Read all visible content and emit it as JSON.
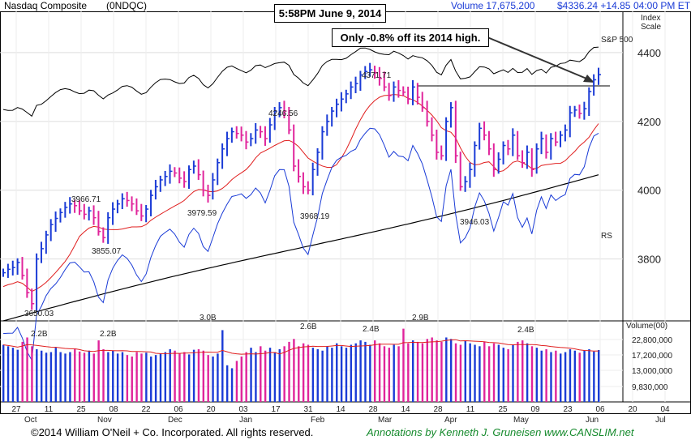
{
  "header": {
    "name": "Nasdaq Composite",
    "symbol": "(0NDQC)",
    "volume": "Volume 17,675,200",
    "price": "$4336.24 +14.85",
    "time": "04:00 PM ET",
    "stamp": "5:58PM  June 9, 2014",
    "note": "Only -0.8% off its 2014 high.",
    "index_scale_1": "Index",
    "index_scale_2": "Scale"
  },
  "footer": {
    "copyright": "©2014 William O'Neil + Co. Incorporated. All rights reserved.",
    "annotations": "Annotations by Kenneth J. Gruneisen  www.CANSLIM.net"
  },
  "colors": {
    "up": "#1a3bd6",
    "down": "#e0249b",
    "ma50": "#e01e1e",
    "ma200": "#000000",
    "rs": "#1a3bd6",
    "sp": "#000000"
  },
  "chart_data": {
    "type": "bar",
    "price_axis": {
      "ticks": [
        4400,
        4200,
        4000,
        3800
      ],
      "range": [
        3620,
        4520
      ],
      "side": "right"
    },
    "volume_axis": {
      "title": "Volume(00)",
      "ticks": [
        "22,800,000",
        "17,200,000",
        "13,000,000",
        "9,830,000"
      ]
    },
    "x_labels": [
      "27",
      "11",
      "25",
      "08",
      "22",
      "06",
      "20",
      "03",
      "17",
      "31",
      "14",
      "28",
      "14",
      "28",
      "11",
      "25",
      "09",
      "23",
      "06",
      "20",
      "04"
    ],
    "month_labels": [
      "Oct",
      "Nov",
      "Dec",
      "Jan",
      "Feb",
      "Mar",
      "Apr",
      "May",
      "Jun",
      "Jul"
    ],
    "price_annotations": [
      {
        "label": "3650.03",
        "value": 3650.03
      },
      {
        "label": "3966.71",
        "value": 3966.71
      },
      {
        "label": "3855.07",
        "value": 3855.07
      },
      {
        "label": "3979.59",
        "value": 3979.59
      },
      {
        "label": "4246.56",
        "value": 4246.56
      },
      {
        "label": "3968.19",
        "value": 3968.19
      },
      {
        "label": "4371.71",
        "value": 4371.71
      },
      {
        "label": "3946.03",
        "value": 3946.03
      }
    ],
    "volume_annotations": [
      "2.2B",
      "2.2B",
      "3.0B",
      "2.6B",
      "2.4B",
      "2.9B",
      "2.4B"
    ],
    "series_labels": {
      "sp": "S&P 500",
      "rs": "RS"
    },
    "high_line": 4360,
    "closes": [
      3760,
      3770,
      3775,
      3790,
      3752,
      3702,
      3670,
      3800,
      3830,
      3870,
      3900,
      3918,
      3935,
      3950,
      3960,
      3955,
      3940,
      3930,
      3940,
      3920,
      3880,
      3862,
      3920,
      3945,
      3960,
      3975,
      3970,
      3960,
      3940,
      3925,
      3945,
      3985,
      4010,
      4030,
      4040,
      4055,
      4050,
      4035,
      4025,
      4060,
      4070,
      4045,
      4000,
      3985,
      4030,
      4080,
      4120,
      4150,
      4170,
      4165,
      4160,
      4140,
      4150,
      4175,
      4170,
      4150,
      4190,
      4230,
      4240,
      4230,
      4175,
      4070,
      4040,
      4010,
      4000,
      4060,
      4110,
      4170,
      4200,
      4230,
      4250,
      4265,
      4280,
      4300,
      4310,
      4335,
      4345,
      4350,
      4342,
      4325,
      4300,
      4275,
      4300,
      4290,
      4285,
      4265,
      4300,
      4270,
      4240,
      4200,
      4160,
      4110,
      4100,
      4200,
      4240,
      4100,
      4010,
      4025,
      4060,
      4130,
      4180,
      4160,
      4120,
      4060,
      4090,
      4130,
      4120,
      4160,
      4100,
      4080,
      4110,
      4060,
      4120,
      4150,
      4110,
      4150,
      4140,
      4160,
      4175,
      4225,
      4233,
      4223,
      4237,
      4287,
      4321,
      4336
    ],
    "volumes": [
      19.5,
      19.0,
      18.5,
      17.8,
      20.5,
      22.0,
      19.0,
      18.0,
      17.5,
      16.8,
      17.0,
      18.5,
      17.0,
      16.5,
      17.0,
      18.0,
      17.2,
      16.8,
      17.5,
      16.5,
      21.0,
      18.0,
      17.0,
      17.5,
      16.5,
      17.0,
      16.0,
      15.5,
      17.0,
      16.5,
      16.8,
      15.5,
      16.0,
      16.5,
      17.0,
      18.0,
      17.5,
      16.5,
      17.0,
      16.2,
      17.8,
      18.0,
      17.5,
      16.0,
      15.5,
      16.5,
      24.5,
      12.5,
      11.5,
      14.0,
      15.5,
      17.0,
      18.5,
      17.0,
      19.0,
      17.5,
      18.5,
      17.0,
      18.0,
      19.0,
      20.5,
      21.5,
      19.0,
      20.0,
      19.5,
      18.5,
      18.0,
      17.5,
      19.0,
      18.5,
      20.0,
      19.0,
      18.5,
      19.5,
      20.0,
      21.0,
      20.5,
      19.5,
      21.0,
      20.0,
      19.0,
      18.5,
      19.5,
      19.0,
      25.0,
      20.0,
      21.0,
      20.5,
      20.0,
      21.5,
      22.0,
      21.0,
      20.5,
      22.0,
      21.5,
      20.0,
      19.5,
      21.0,
      20.0,
      19.5,
      19.0,
      20.5,
      19.0,
      20.0,
      19.5,
      18.5,
      18.0,
      19.5,
      20.5,
      21.0,
      20.0,
      19.0,
      18.5,
      17.5,
      18.0,
      17.0,
      17.5,
      16.5,
      17.0,
      18.0,
      17.5,
      16.8,
      17.5,
      18.0,
      17.2,
      17.7
    ]
  }
}
